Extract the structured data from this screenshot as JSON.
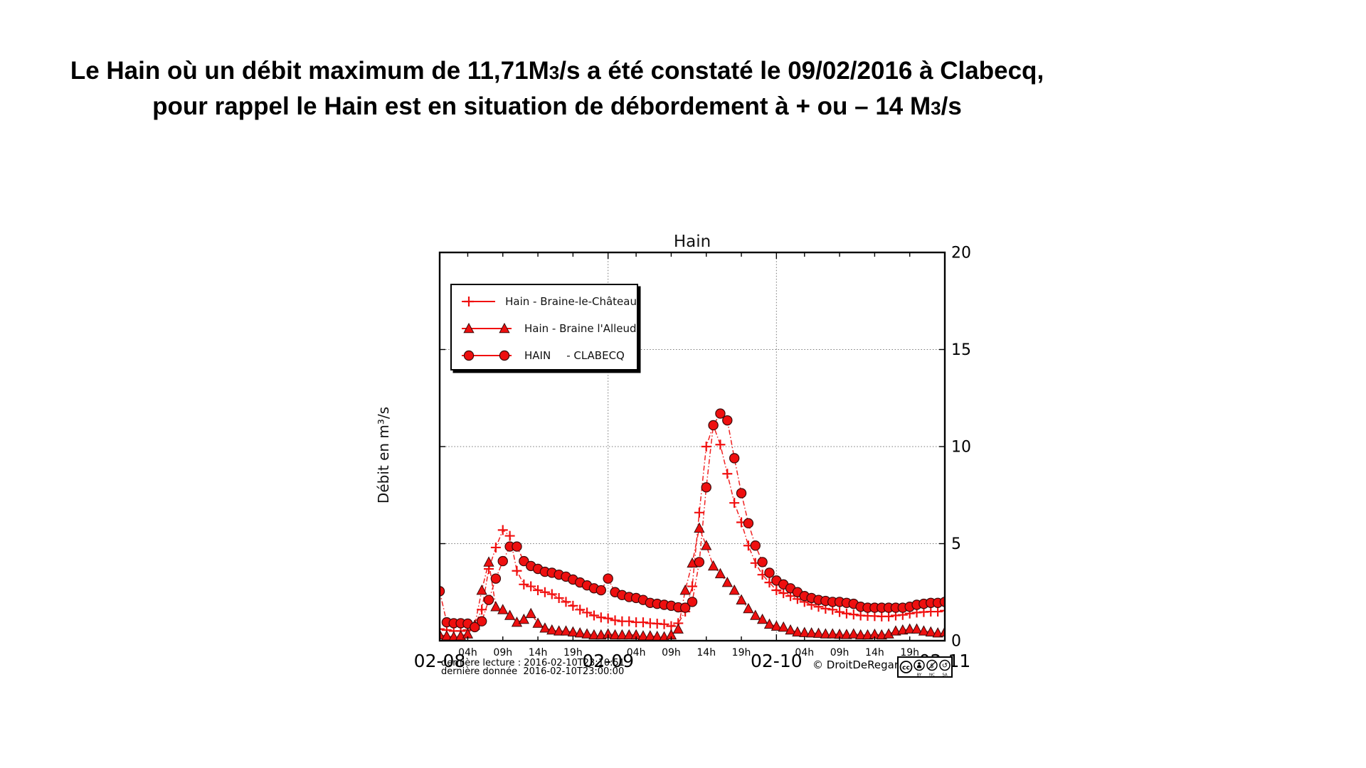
{
  "header": {
    "line1": [
      {
        "t": "Le Hain où un débit maximum de 11,71M"
      },
      {
        "t": "3",
        "small": true
      },
      {
        "t": "/s a été constaté le 09/02/2016 à Clabecq,"
      }
    ],
    "line2": [
      {
        "t": "pour rappel le Hain est en situation de débordement à + ou – 14 M"
      },
      {
        "t": "3",
        "small": true
      },
      {
        "t": "/s"
      }
    ]
  },
  "chart_data": {
    "type": "line",
    "title": "Hain",
    "ylabel": "Débit en m³/s",
    "ylim": [
      0,
      20
    ],
    "yticks": [
      0,
      5,
      10,
      15,
      20
    ],
    "x_axis": {
      "start": "2016-02-08 00:00",
      "end": "2016-02-11 00:00",
      "unit": "hours",
      "range_hours": [
        0,
        72
      ]
    },
    "day_ticks": [
      {
        "hour": 0,
        "label": "02-08"
      },
      {
        "hour": 24,
        "label": "02-09"
      },
      {
        "hour": 48,
        "label": "02-10"
      },
      {
        "hour": 72,
        "label": "02-11"
      }
    ],
    "hour_tick_offsets": [
      4,
      9,
      14,
      19
    ],
    "hour_tick_labels": [
      "04h",
      "09h",
      "14h",
      "19h"
    ],
    "grid": {
      "style": "dotted",
      "horizontal_at": [
        5,
        10,
        15
      ],
      "vertical_at_hours": [
        24,
        48
      ]
    },
    "legend": {
      "position": "upper-left",
      "items": [
        {
          "label": "Hain - Braine-le-Château",
          "marker": "plus"
        },
        {
          "label": "Hain - Braine l'Alleud",
          "marker": "triangle"
        },
        {
          "label": "HAIN",
          "label2": "- CLABECQ",
          "marker": "circle"
        }
      ]
    },
    "series": [
      {
        "id": "braine-le-chateau",
        "name": "Hain - Braine-le-Château",
        "marker": "plus",
        "color": "#f11010",
        "values": [
          0.6,
          0.55,
          0.5,
          0.5,
          0.55,
          0.8,
          1.6,
          3.7,
          4.8,
          5.7,
          5.4,
          3.6,
          2.9,
          2.8,
          2.6,
          2.5,
          2.4,
          2.2,
          2.0,
          1.8,
          1.6,
          1.45,
          1.3,
          1.2,
          1.15,
          1.05,
          1.0,
          1.0,
          0.95,
          0.95,
          0.9,
          0.88,
          0.85,
          0.75,
          0.9,
          1.5,
          2.8,
          6.6,
          10.0,
          11.1,
          10.1,
          8.6,
          7.1,
          6.1,
          4.9,
          4.0,
          3.4,
          3.0,
          2.6,
          2.45,
          2.3,
          2.15,
          2.0,
          1.85,
          1.75,
          1.65,
          1.6,
          1.48,
          1.4,
          1.35,
          1.3,
          1.28,
          1.27,
          1.25,
          1.25,
          1.3,
          1.33,
          1.4,
          1.45,
          1.48,
          1.5,
          1.5,
          1.55
        ]
      },
      {
        "id": "braine-l-alleud",
        "name": "Hain - Braine l'Alleud",
        "marker": "triangle",
        "color": "#ee0f0f",
        "values": [
          0.3,
          0.25,
          0.2,
          0.25,
          0.35,
          0.8,
          2.6,
          4.05,
          1.75,
          1.6,
          1.3,
          0.95,
          1.1,
          1.4,
          0.9,
          0.65,
          0.55,
          0.5,
          0.5,
          0.45,
          0.4,
          0.35,
          0.3,
          0.3,
          0.35,
          0.3,
          0.3,
          0.3,
          0.3,
          0.25,
          0.25,
          0.22,
          0.2,
          0.3,
          0.6,
          2.6,
          4.0,
          5.8,
          4.9,
          3.85,
          3.45,
          3.0,
          2.6,
          2.1,
          1.65,
          1.3,
          1.1,
          0.85,
          0.75,
          0.7,
          0.55,
          0.45,
          0.42,
          0.4,
          0.38,
          0.35,
          0.35,
          0.33,
          0.32,
          0.35,
          0.3,
          0.3,
          0.33,
          0.3,
          0.35,
          0.5,
          0.55,
          0.6,
          0.6,
          0.5,
          0.45,
          0.4,
          0.45
        ]
      },
      {
        "id": "clabecq",
        "name": "HAIN - CLABECQ",
        "marker": "circle",
        "color": "#ee0f0f",
        "values": [
          2.55,
          0.95,
          0.9,
          0.9,
          0.88,
          0.7,
          1.0,
          2.1,
          3.2,
          4.1,
          4.85,
          4.85,
          4.1,
          3.85,
          3.7,
          3.55,
          3.5,
          3.4,
          3.3,
          3.15,
          3.0,
          2.85,
          2.7,
          2.6,
          3.2,
          2.5,
          2.35,
          2.25,
          2.2,
          2.1,
          1.95,
          1.9,
          1.85,
          1.8,
          1.72,
          1.7,
          2.0,
          4.05,
          7.9,
          11.1,
          11.7,
          11.35,
          9.4,
          7.6,
          6.05,
          4.9,
          4.05,
          3.5,
          3.1,
          2.9,
          2.7,
          2.5,
          2.3,
          2.2,
          2.1,
          2.05,
          2.0,
          2.0,
          1.95,
          1.9,
          1.75,
          1.7,
          1.7,
          1.7,
          1.7,
          1.7,
          1.7,
          1.75,
          1.85,
          1.9,
          1.95,
          1.95,
          2.0
        ]
      }
    ]
  },
  "footer": {
    "last_reading": "dernière lecture : 2016-02-10T23:10:51",
    "last_data": "dernière donnée  2016-02-10T23:00:00",
    "copyright": "© DroitDeRegard.be",
    "license": {
      "cc": "cc",
      "by": "BY",
      "nc": "NC",
      "sa": "SA"
    }
  }
}
